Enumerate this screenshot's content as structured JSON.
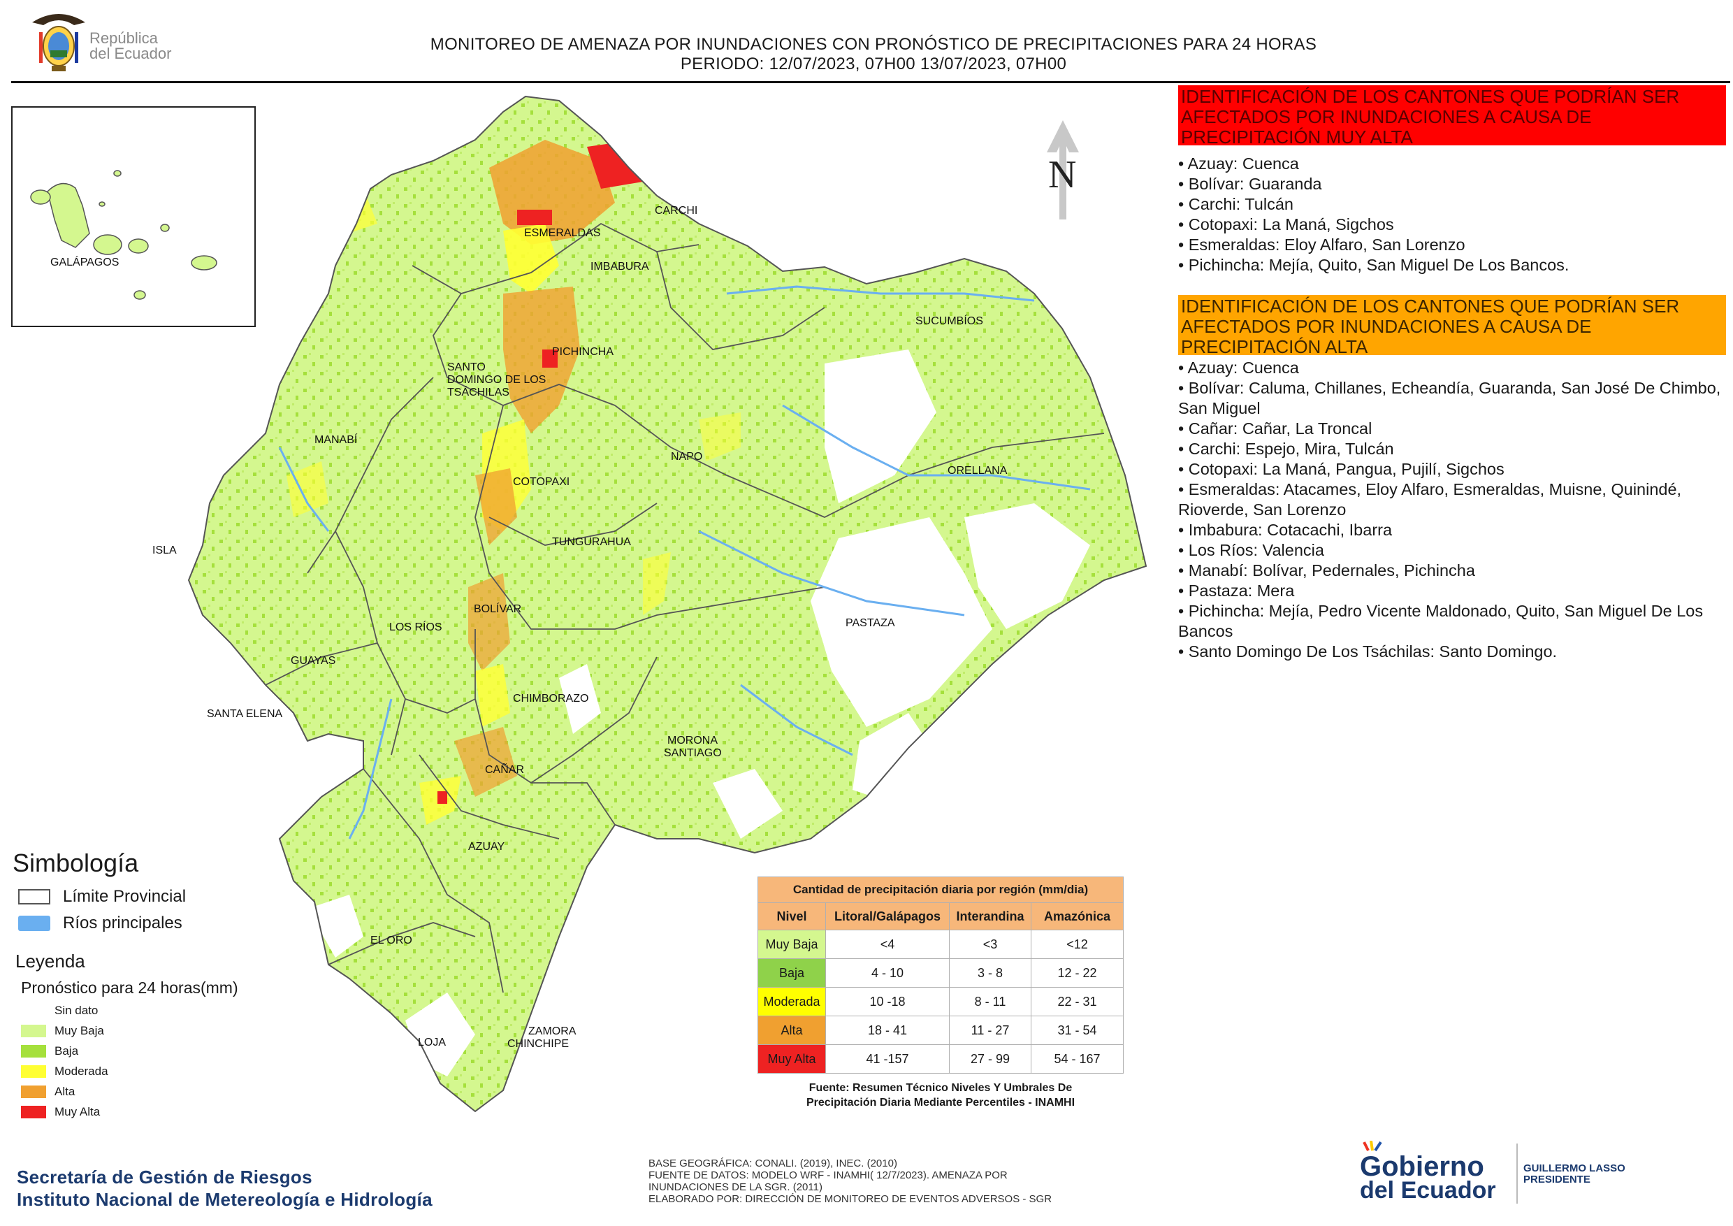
{
  "header": {
    "country_logo_text": [
      "República",
      "del Ecuador"
    ],
    "title_line1": "MONITOREO DE AMENAZA POR INUNDACIONES  CON PRONÓSTICO DE  PRECIPITACIONES PARA 24 HORAS",
    "title_line2": "PERIODO: 12/07/2023, 07H00 13/07/2023, 07H00"
  },
  "map": {
    "north_label": "N",
    "inset_label": "GALÁPAGOS",
    "province_labels": [
      "ESMERALDAS",
      "CARCHI",
      "IMBABURA",
      "SUCUMBÍOS",
      "PICHINCHA",
      "SANTO",
      "DOMINGO DE LOS",
      "TSÁCHILAS",
      "MANABÍ",
      "NAPO",
      "ORELLANA",
      "COTOPAXI",
      "ISLA",
      "TUNGURAHUA",
      "BOLÍVAR",
      "LOS RÍOS",
      "GUAYAS",
      "PASTAZA",
      "SANTA ELENA",
      "CHIMBORAZO",
      "MORONA",
      "SANTIAGO",
      "CAÑAR",
      "AZUAY",
      "EL ORO",
      "LOJA",
      "ZAMORA",
      "CHINCHIPE"
    ],
    "colors": {
      "sin_dato": "#ffffff",
      "muy_baja": "#d4f78f",
      "baja": "#a5e03c",
      "moderada": "#ffff33",
      "alta": "#f0a030",
      "muy_alta": "#ee2222",
      "rivers": "#6aaff0",
      "boundary": "#555555"
    }
  },
  "alerts": {
    "muy_alta": {
      "heading": "IDENTIFICACIÓN DE LOS CANTONES QUE PODRÍAN SER AFECTADOS POR INUNDACIONES  A CAUSA DE PRECIPITACIÓN MUY ALTA",
      "items": [
        "• Azuay: Cuenca",
        "• Bolívar: Guaranda",
        "• Carchi: Tulcán",
        "• Cotopaxi: La Maná, Sigchos",
        "• Esmeraldas: Eloy Alfaro, San Lorenzo",
        "• Pichincha: Mejía, Quito, San Miguel De Los Bancos."
      ]
    },
    "alta": {
      "heading": "IDENTIFICACIÓN DE LOS CANTONES QUE  PODRÍAN SER AFECTADOS POR INUNDACIONES  A CAUSA DE PRECIPITACIÓN ALTA",
      "items": [
        "• Azuay: Cuenca",
        "• Bolívar: Caluma, Chillanes, Echeandía, Guaranda, San José De Chimbo, San Miguel",
        "• Cañar: Cañar, La Troncal",
        "• Carchi: Espejo, Mira, Tulcán",
        "• Cotopaxi: La Maná, Pangua, Pujilí, Sigchos",
        "• Esmeraldas: Atacames, Eloy Alfaro, Esmeraldas, Muisne, Quinindé, Rioverde, San Lorenzo",
        "• Imbabura: Cotacachi, Ibarra",
        "• Los Ríos: Valencia",
        "• Manabí: Bolívar, Pedernales, Pichincha",
        "• Pastaza: Mera",
        "• Pichincha: Mejía, Pedro Vicente Maldonado, Quito, San Miguel De Los Bancos",
        "• Santo Domingo De Los Tsáchilas: Santo Domingo."
      ]
    }
  },
  "legend": {
    "simbologia_title": "Simbología",
    "limite_provincial": "Límite Provincial",
    "rios_principales": "Ríos principales",
    "leyenda_title": "Leyenda",
    "pronostico_title": "Pronóstico para 24 horas(mm)",
    "classes": [
      {
        "label": "Sin dato",
        "color": "#ffffff"
      },
      {
        "label": "Muy Baja",
        "color": "#d4f78f"
      },
      {
        "label": "Baja",
        "color": "#a5e03c"
      },
      {
        "label": "Moderada",
        "color": "#ffff33"
      },
      {
        "label": "Alta",
        "color": "#f0a030"
      },
      {
        "label": "Muy Alta",
        "color": "#ee2222"
      }
    ]
  },
  "table": {
    "caption": "Cantidad de precipitación diaria por región (mm/dia)",
    "headers": [
      "Nivel",
      "Litoral/Galápagos",
      "Interandina",
      "Amazónica"
    ],
    "rows": [
      {
        "nivel": "Muy Baja",
        "color": "#d4f78f",
        "litoral": "<4",
        "interandina": "<3",
        "amazonica": "<12"
      },
      {
        "nivel": "Baja",
        "color": "#8fd24a",
        "litoral": "4 - 10",
        "interandina": "3 - 8",
        "amazonica": "12 - 22"
      },
      {
        "nivel": "Moderada",
        "color": "#ffff00",
        "litoral": "10 -18",
        "interandina": "8 - 11",
        "amazonica": "22 - 31"
      },
      {
        "nivel": "Alta",
        "color": "#f0a030",
        "litoral": "18 - 41",
        "interandina": "11 - 27",
        "amazonica": "31 - 54"
      },
      {
        "nivel": "Muy Alta",
        "color": "#ee2222",
        "litoral": "41 -157",
        "interandina": "27 - 99",
        "amazonica": "54 - 167"
      }
    ],
    "source": [
      "Fuente: Resumen Técnico Niveles Y Umbrales De",
      "Precipitación Diaria Mediante Percentiles - INAMHI"
    ]
  },
  "footer": {
    "institution_line1": "Secretaría de Gestión de Riesgos",
    "institution_line2": "Instituto Nacional de Metereología e Hidrología",
    "credits": [
      "BASE GEOGRÁFICA: CONALI. (2019), INEC. (2010)",
      "FUENTE DE DATOS: MODELO WRF - INAMHI( 12/7/2023).  AMENAZA POR",
      "INUNDACIONES DE LA SGR. (2011)",
      "ELABORADO POR: DIRECCIÓN DE MONITOREO DE EVENTOS ADVERSOS - SGR"
    ],
    "gobierno_line1": "Gobierno",
    "gobierno_line2": "del Ecuador",
    "president_line1": "GUILLERMO LASSO",
    "president_line2": "PRESIDENTE"
  }
}
